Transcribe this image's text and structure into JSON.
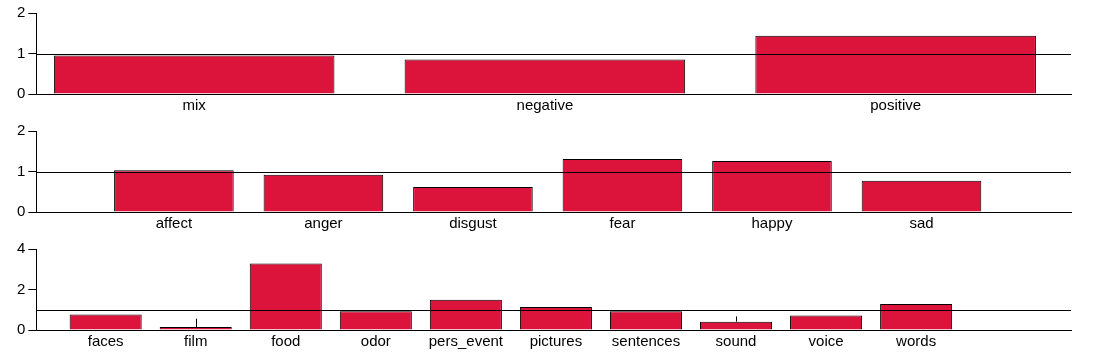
{
  "chart_data": [
    {
      "type": "bar",
      "categories": [
        "mix",
        "negative",
        "positive"
      ],
      "values": [
        0.95,
        0.85,
        1.44
      ],
      "color": "#dc143c",
      "ylim": [
        0,
        2
      ],
      "yticks": [
        0,
        1,
        2
      ],
      "grid": false,
      "legend": false,
      "ref_lines": [
        {
          "axis": "y",
          "value": 1,
          "color": "#000000"
        }
      ]
    },
    {
      "type": "bar",
      "categories": [
        "affect",
        "anger",
        "disgust",
        "fear",
        "happy",
        "sad"
      ],
      "values": [
        1.03,
        0.92,
        0.62,
        1.31,
        1.26,
        0.77
      ],
      "color": "#dc143c",
      "ylim": [
        0,
        2
      ],
      "yticks": [
        0,
        1,
        2
      ],
      "grid": false,
      "legend": false,
      "ref_lines": [
        {
          "axis": "y",
          "value": 1,
          "color": "#000000"
        }
      ]
    },
    {
      "type": "bar",
      "categories": [
        "faces",
        "film",
        "food",
        "odor",
        "pers_event",
        "pictures",
        "sentences",
        "sound",
        "voice",
        "words"
      ],
      "values": [
        0.77,
        0.15,
        3.28,
        0.92,
        1.49,
        1.13,
        0.92,
        0.41,
        0.72,
        1.28
      ],
      "errors": [
        null,
        [
          0.15,
          0.56
        ],
        null,
        null,
        null,
        null,
        null,
        [
          0.41,
          0.67
        ],
        null,
        null
      ],
      "color": "#dc143c",
      "ylim": [
        0,
        4
      ],
      "yticks": [
        0,
        2,
        4
      ],
      "grid": false,
      "legend": false,
      "ref_lines": [
        {
          "axis": "y",
          "value": 1,
          "color": "#000000"
        }
      ]
    }
  ]
}
